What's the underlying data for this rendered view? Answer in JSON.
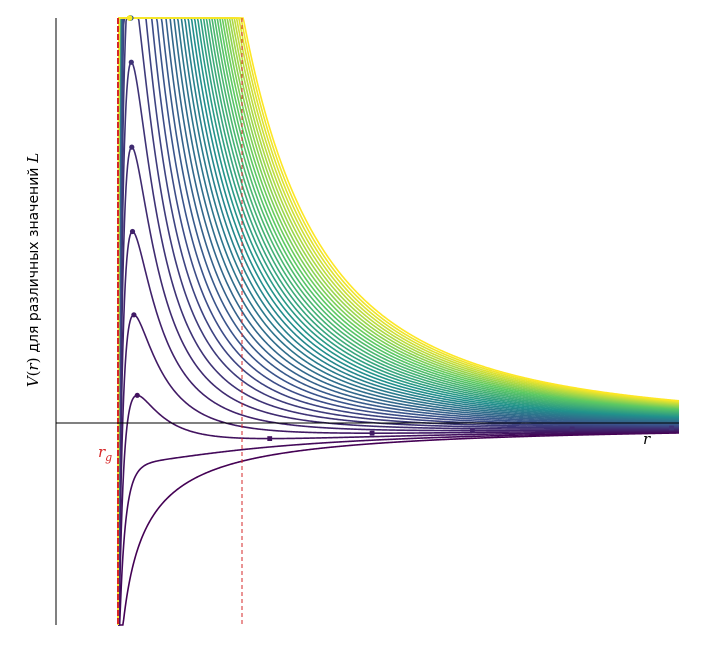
{
  "chart_data": {
    "type": "line",
    "title": "",
    "ylabel": {
      "var": "V",
      "arg": "r",
      "text": "для различных значений",
      "param": "L"
    },
    "xlabel": "r",
    "marker_label": {
      "main": "r",
      "sub": "g"
    },
    "num_curves": 40,
    "colormap": "viridis",
    "colors": [
      "#440154",
      "#3b528b",
      "#21918c",
      "#5ec962",
      "#fde725"
    ],
    "axis_color": "#000000",
    "marker_line_color": "#d62728"
  }
}
